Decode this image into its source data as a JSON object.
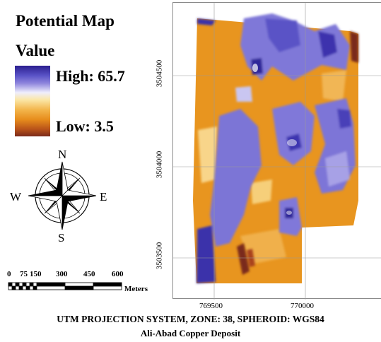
{
  "legend": {
    "title_line1": "Potential Map",
    "title_line2": "Value",
    "high_label": "High: 65.7",
    "low_label": "Low: 3.5"
  },
  "compass": {
    "n": "N",
    "s": "S",
    "e": "E",
    "w": "W"
  },
  "scale_bar": {
    "ticks": [
      "0",
      "75",
      "150",
      "300",
      "450",
      "600"
    ],
    "unit": "Meters"
  },
  "map": {
    "y_labels": [
      "3504500",
      "3504000",
      "3503500"
    ],
    "x_labels": [
      "769500",
      "770000"
    ],
    "colors": {
      "high": "#2b1f8f",
      "mid_high": "#7f78d8",
      "mid": "#fbe7a8",
      "mid_low": "#e98f1c",
      "low": "#7a2a1b"
    }
  },
  "footer": {
    "projection": "UTM PROJECTION SYSTEM, ZONE: 38, SPHEROID: WGS84",
    "deposit": "Ali-Abad Copper Deposit"
  }
}
